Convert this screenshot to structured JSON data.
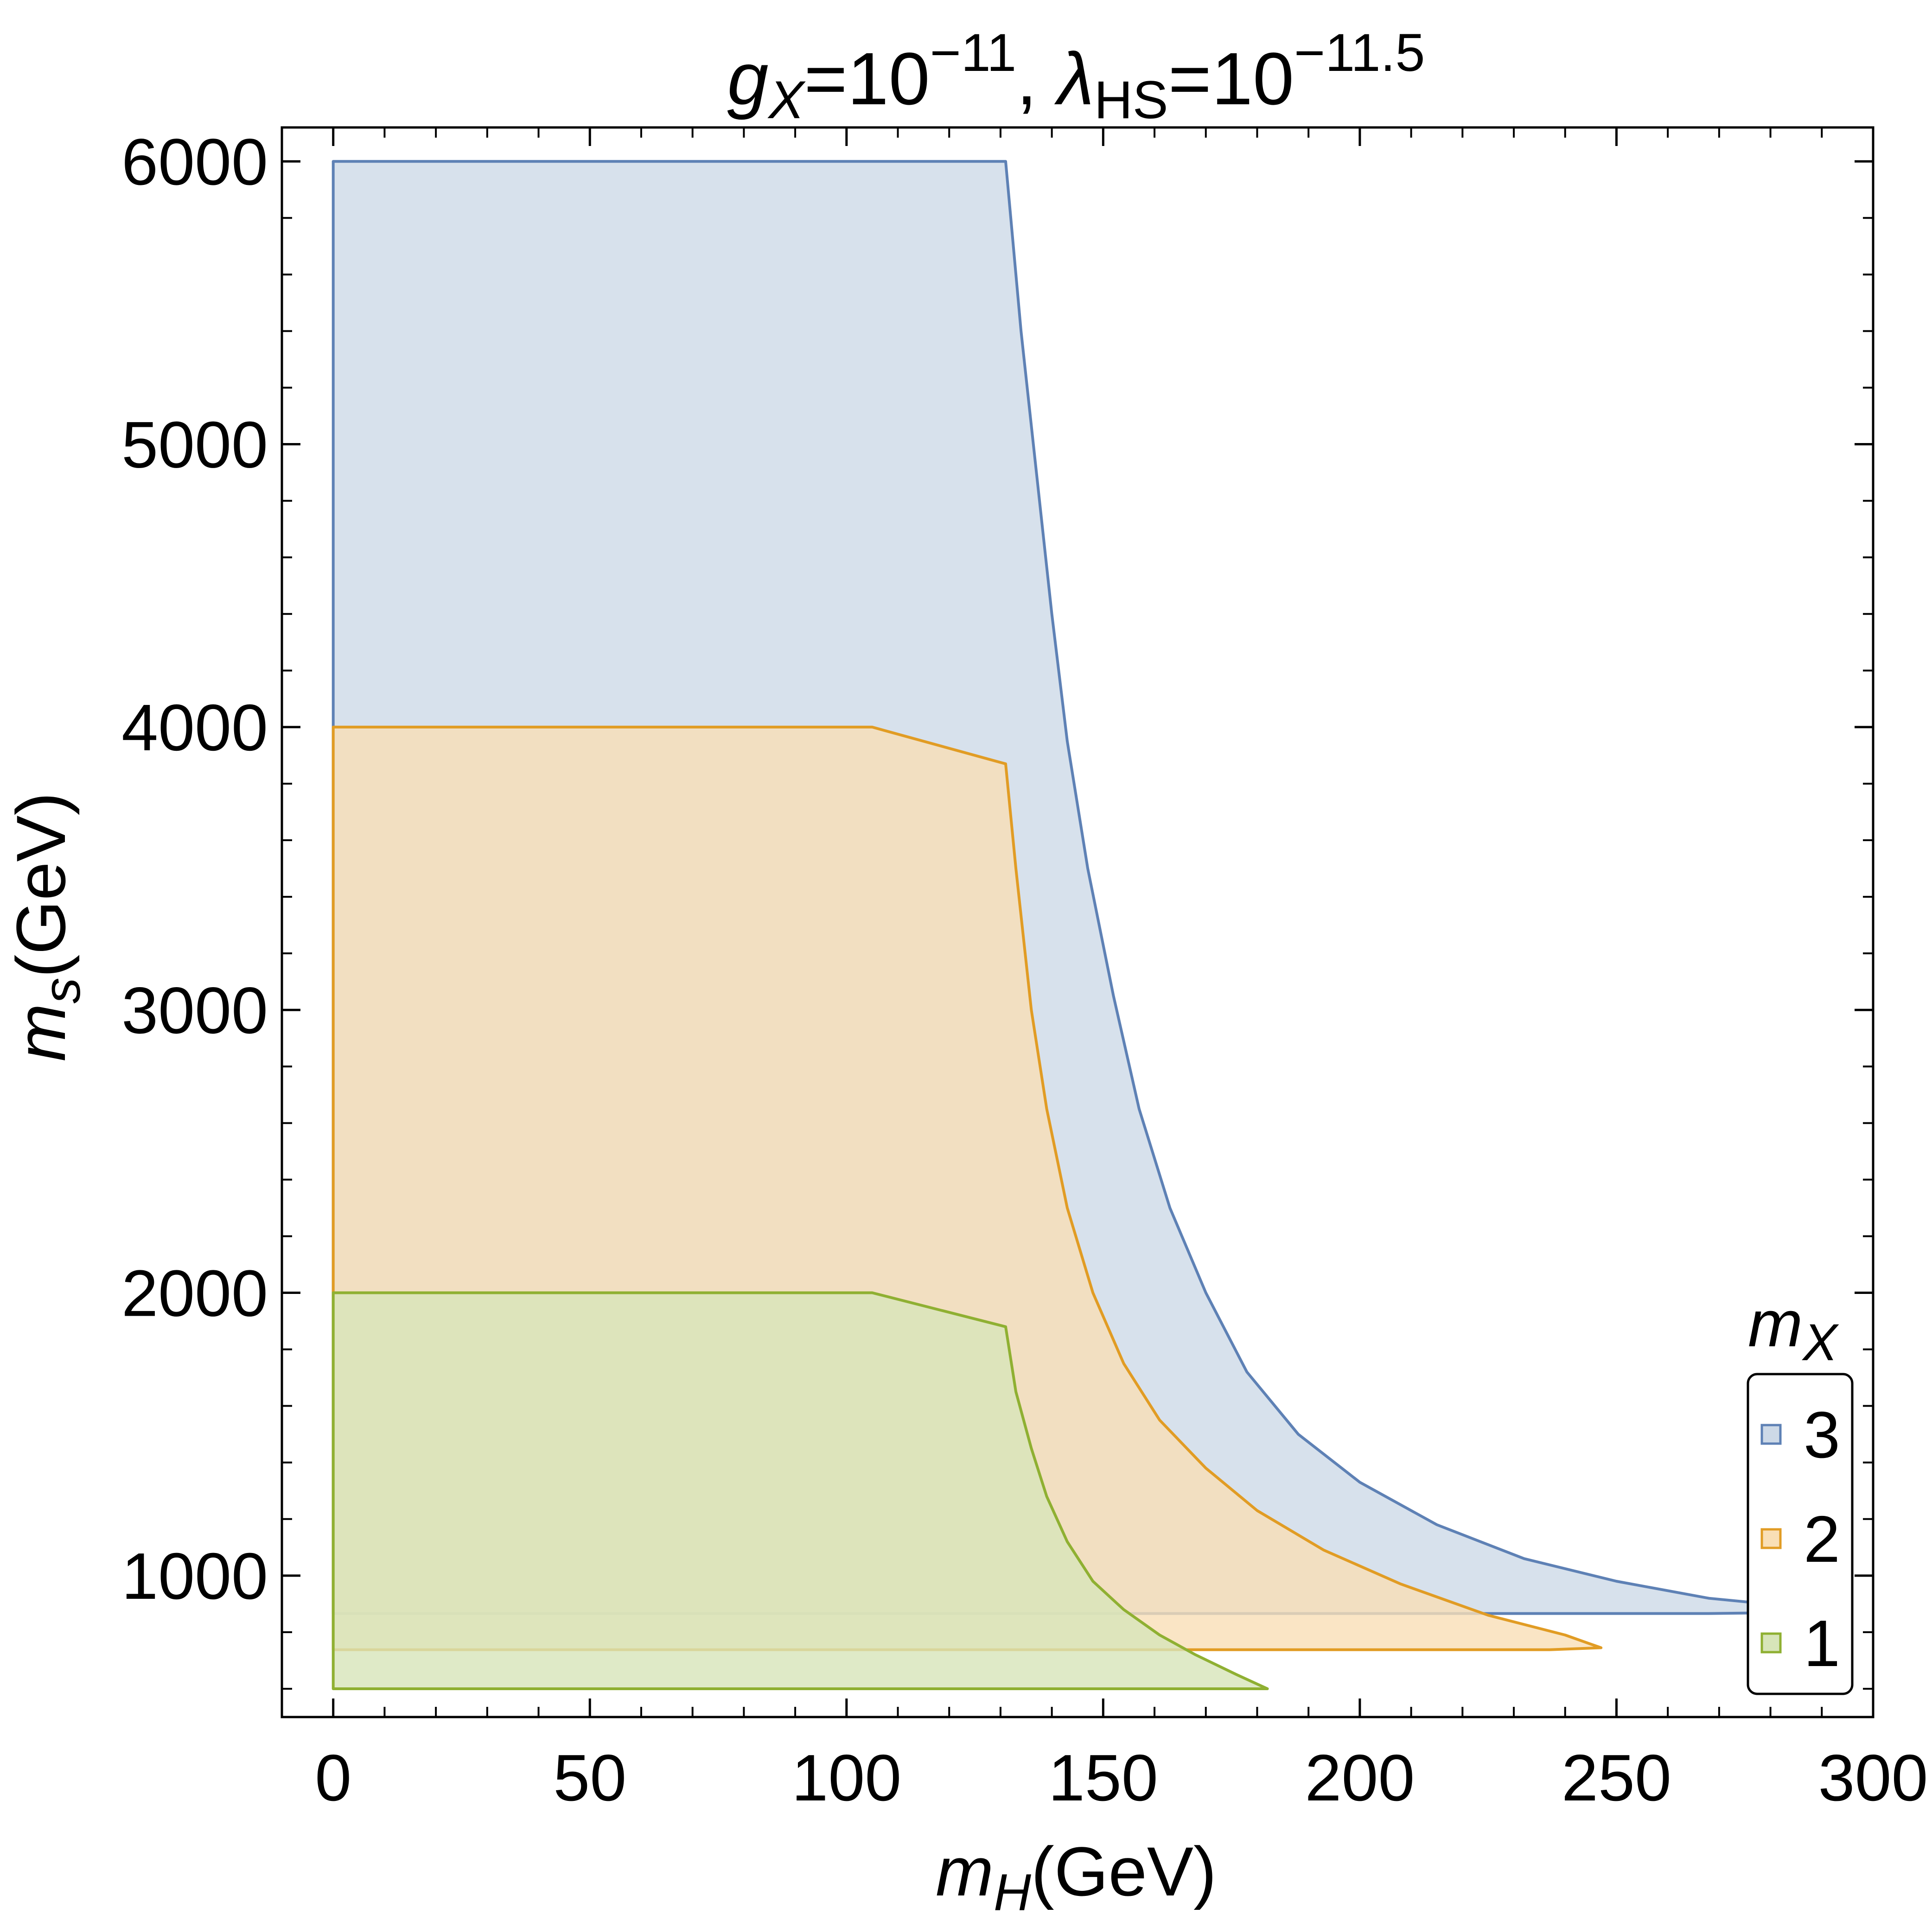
{
  "chart_data": {
    "type": "area",
    "title": {
      "g_symbol": "g",
      "g_sub": "X",
      "g_eq": "=10",
      "g_exp": "−11",
      "sep": ", ",
      "lambda_symbol": "λ",
      "lambda_sub": "HS",
      "lambda_eq": "=10",
      "lambda_exp": "−11.5"
    },
    "xlabel": {
      "symbol": "m",
      "sub": "H",
      "unit": "(GeV)"
    },
    "ylabel": {
      "symbol": "m",
      "sub": "s",
      "unit": "(GeV)"
    },
    "xlim": [
      -10,
      300
    ],
    "ylim": [
      500,
      6120
    ],
    "xticks": [
      0,
      50,
      100,
      150,
      200,
      250,
      300
    ],
    "yticks": [
      1000,
      2000,
      3000,
      4000,
      5000,
      6000
    ],
    "xtick_labels": [
      "0",
      "50",
      "100",
      "150",
      "200",
      "250",
      "300"
    ],
    "ytick_labels": [
      "1000",
      "2000",
      "3000",
      "4000",
      "5000",
      "6000"
    ],
    "legend": {
      "title_symbol": "m",
      "title_sub": "X",
      "placement": "bottom-right"
    },
    "series": [
      {
        "name": "3",
        "stroke": "#5e81b5",
        "fill": "#cdd9e7",
        "points": [
          [
            0,
            6000
          ],
          [
            131,
            6000
          ],
          [
            132,
            5800
          ],
          [
            134,
            5400
          ],
          [
            137,
            4900
          ],
          [
            140,
            4400
          ],
          [
            143,
            3950
          ],
          [
            147,
            3500
          ],
          [
            152,
            3050
          ],
          [
            157,
            2650
          ],
          [
            163,
            2300
          ],
          [
            170,
            2000
          ],
          [
            178,
            1720
          ],
          [
            188,
            1500
          ],
          [
            200,
            1330
          ],
          [
            215,
            1180
          ],
          [
            232,
            1060
          ],
          [
            250,
            980
          ],
          [
            268,
            920
          ],
          [
            285,
            890
          ],
          [
            295,
            872
          ],
          [
            268,
            866
          ],
          [
            0,
            866
          ]
        ]
      },
      {
        "name": "2",
        "stroke": "#e19c24",
        "fill": "#f9dfb6",
        "points": [
          [
            0,
            4000
          ],
          [
            105,
            4000
          ],
          [
            131,
            3870
          ],
          [
            133,
            3500
          ],
          [
            136,
            3000
          ],
          [
            139,
            2650
          ],
          [
            143,
            2300
          ],
          [
            148,
            2000
          ],
          [
            154,
            1750
          ],
          [
            161,
            1550
          ],
          [
            170,
            1380
          ],
          [
            180,
            1230
          ],
          [
            193,
            1090
          ],
          [
            208,
            970
          ],
          [
            225,
            860
          ],
          [
            240,
            790
          ],
          [
            247,
            745
          ],
          [
            237,
            738
          ],
          [
            0,
            738
          ]
        ]
      },
      {
        "name": "1",
        "stroke": "#8fb032",
        "fill": "#d7e5b9",
        "points": [
          [
            0,
            2000
          ],
          [
            105,
            2000
          ],
          [
            131,
            1880
          ],
          [
            133,
            1650
          ],
          [
            136,
            1450
          ],
          [
            139,
            1280
          ],
          [
            143,
            1120
          ],
          [
            148,
            980
          ],
          [
            154,
            880
          ],
          [
            161,
            790
          ],
          [
            168,
            720
          ],
          [
            176,
            650
          ],
          [
            182,
            600
          ],
          [
            0,
            600
          ]
        ]
      }
    ]
  }
}
